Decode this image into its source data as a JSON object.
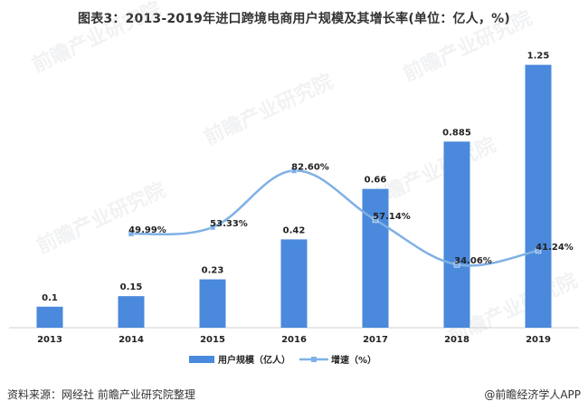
{
  "chart_data": {
    "type": "bar",
    "title": "图表3：2013-2019年进口跨境电商用户规模及其增长率(单位：亿人，%)",
    "categories": [
      "2013",
      "2014",
      "2015",
      "2016",
      "2017",
      "2018",
      "2019"
    ],
    "series": [
      {
        "name": "用户规模（亿人）",
        "type": "bar",
        "color": "#4a89dc",
        "values": [
          0.1,
          0.15,
          0.23,
          0.42,
          0.66,
          0.885,
          1.25
        ],
        "labels": [
          "0.1",
          "0.15",
          "0.23",
          "0.42",
          "0.66",
          "0.885",
          "1.25"
        ]
      },
      {
        "name": "增速（%）",
        "type": "line",
        "color": "#7fb0e6",
        "values": [
          null,
          49.99,
          53.33,
          82.6,
          57.14,
          34.06,
          41.24
        ],
        "labels": [
          "",
          "49.99%",
          "53.33%",
          "82.60%",
          "57.14%",
          "34.06%",
          "41.24%"
        ]
      }
    ],
    "bar_ylim": [
      0,
      1.3
    ],
    "line_ylim": [
      0,
      110
    ],
    "legend_position": "bottom"
  },
  "source": "资料来源：网经社 前瞻产业研究院整理",
  "brand": "@前瞻经济学人APP",
  "watermark": "前瞻产业研究院"
}
